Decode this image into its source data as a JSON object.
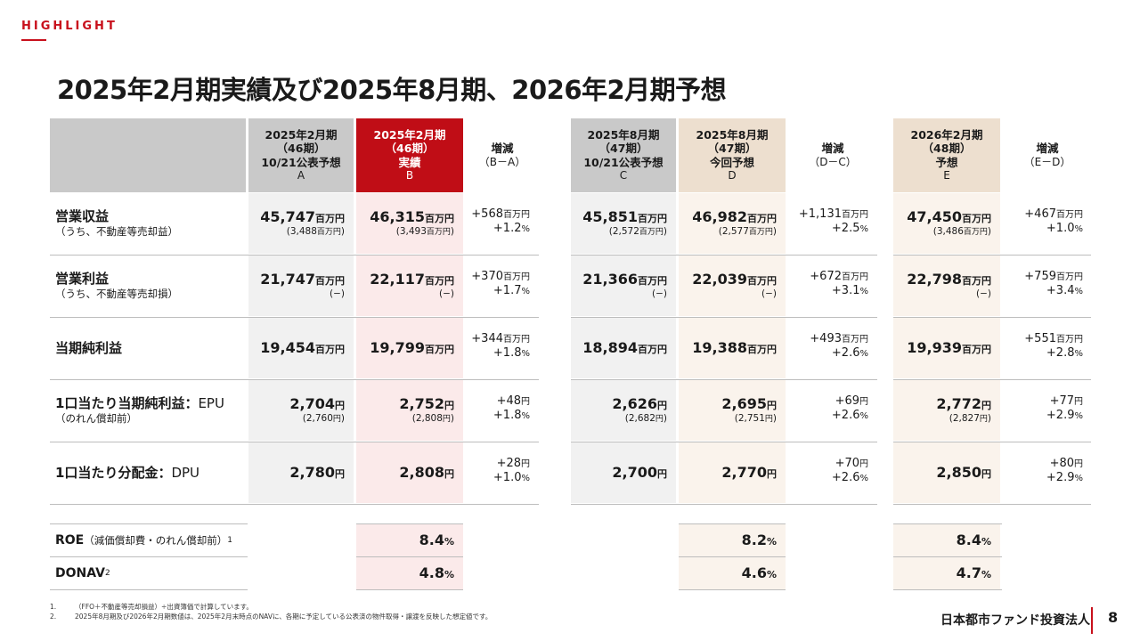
{
  "header": {
    "tag": "HIGHLIGHT",
    "title": "2025年2月期実績及び2025年8月期、2026年2月期予想"
  },
  "columns": {
    "a": {
      "l1": "2025年2月期",
      "l2": "（46期）",
      "l3": "10/21公表予想",
      "l4": "A"
    },
    "b": {
      "l1": "2025年2月期",
      "l2": "（46期）",
      "l3": "実績",
      "l4": "B"
    },
    "bc": {
      "l1": "増減",
      "l2": "（B－A）"
    },
    "c": {
      "l1": "2025年8月期",
      "l2": "（47期）",
      "l3": "10/21公表予想",
      "l4": "C"
    },
    "d": {
      "l1": "2025年8月期",
      "l2": "（47期）",
      "l3": "今回予想",
      "l4": "D"
    },
    "dc": {
      "l1": "増減",
      "l2": "（D－C）"
    },
    "e": {
      "l1": "2026年2月期",
      "l2": "（48期）",
      "l3": "予想",
      "l4": "E"
    },
    "ec": {
      "l1": "増減",
      "l2": "（E－D）"
    }
  },
  "units": {
    "mil": "百万円",
    "yen": "円",
    "pct": "%"
  },
  "rows": [
    {
      "label": "営業収益",
      "sub": "（うち、不動産等売却益）",
      "a": "45,747",
      "a_sub": "(3,488",
      "b": "46,315",
      "b_sub": "(3,493",
      "bc": "+568",
      "bc_pct": "+1.2",
      "c": "45,851",
      "c_sub": "(2,572",
      "d": "46,982",
      "d_sub": "(2,577",
      "dc": "+1,131",
      "dc_pct": "+2.5",
      "e": "47,450",
      "e_sub": "(3,486",
      "ec": "+467",
      "ec_pct": "+1.0"
    },
    {
      "label": "営業利益",
      "sub": "（うち、不動産等売却損）",
      "a": "21,747",
      "a_sub": "(−)",
      "b": "22,117",
      "b_sub": "(−)",
      "bc": "+370",
      "bc_pct": "+1.7",
      "c": "21,366",
      "c_sub": "(−)",
      "d": "22,039",
      "d_sub": "(−)",
      "dc": "+672",
      "dc_pct": "+3.1",
      "e": "22,798",
      "e_sub": "(−)",
      "ec": "+759",
      "ec_pct": "+3.4"
    },
    {
      "label": "当期純利益",
      "a": "19,454",
      "b": "19,799",
      "bc": "+344",
      "bc_pct": "+1.8",
      "c": "18,894",
      "d": "19,388",
      "dc": "+493",
      "dc_pct": "+2.6",
      "e": "19,939",
      "ec": "+551",
      "ec_pct": "+2.8"
    },
    {
      "label": "1口当たり当期純利益：",
      "label2": "EPU",
      "sub": "（のれん償却前）",
      "a": "2,704",
      "a_sub": "(2,760",
      "b": "2,752",
      "b_sub": "(2,808",
      "bc": "+48",
      "bc_pct": "+1.8",
      "c": "2,626",
      "c_sub": "(2,682",
      "d": "2,695",
      "d_sub": "(2,751",
      "dc": "+69",
      "dc_pct": "+2.6",
      "e": "2,772",
      "e_sub": "(2,827",
      "ec": "+77",
      "ec_pct": "+2.9"
    },
    {
      "label": "1口当たり分配金：",
      "label2": "DPU",
      "a": "2,780",
      "b": "2,808",
      "bc": "+28",
      "bc_pct": "+1.0",
      "c": "2,700",
      "d": "2,770",
      "dc": "+70",
      "dc_pct": "+2.6",
      "e": "2,850",
      "ec": "+80",
      "ec_pct": "+2.9"
    }
  ],
  "roe": {
    "label": "ROE",
    "note": "（減価償却費・のれん償却前）",
    "sup": "1",
    "b": "8.4",
    "d": "8.2",
    "e": "8.4"
  },
  "donav": {
    "label": "DONAV",
    "sup": "2",
    "b": "4.8",
    "d": "4.6",
    "e": "4.7"
  },
  "footnotes": [
    {
      "num": "1.",
      "text": "（FFO＋不動産等売却損益）÷出資簿価で計算しています。"
    },
    {
      "num": "2.",
      "text": "2025年8月期及び2026年2月期数値は、2025年2月末時点のNAVに、各期に予定している公表済の物件取得・譲渡を反映した想定値です。"
    }
  ],
  "footer": {
    "company": "日本都市ファンド投資法人",
    "page": "8"
  },
  "colors": {
    "accent": "#c00d16",
    "grey_header": "#c9c9c9",
    "beige_header": "#eddfcf",
    "pink_cell": "#fbeaea",
    "beige_cell": "#faf3ec"
  }
}
